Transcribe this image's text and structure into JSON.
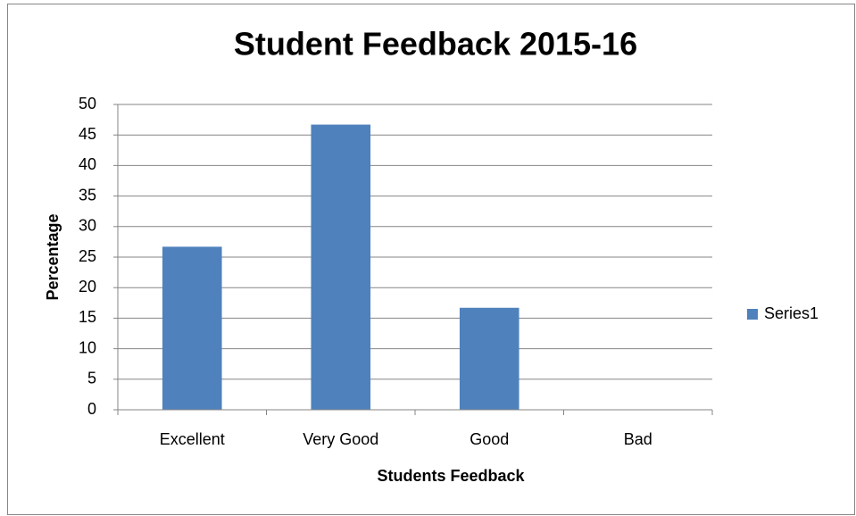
{
  "chart_data": {
    "type": "bar",
    "title": "Student Feedback  2015-16",
    "x_label": "Students Feedback",
    "y_label": "Percentage",
    "categories": [
      "Excellent",
      "Very Good",
      "Good",
      "Bad"
    ],
    "series": [
      {
        "name": "Series1",
        "color": "#4f81bd",
        "values": [
          26.7,
          46.7,
          16.7,
          0
        ]
      }
    ],
    "ylim": [
      0,
      50
    ],
    "yticks": [
      0,
      5,
      10,
      15,
      20,
      25,
      30,
      35,
      40,
      45,
      50
    ],
    "grid": true,
    "legend": "right"
  }
}
